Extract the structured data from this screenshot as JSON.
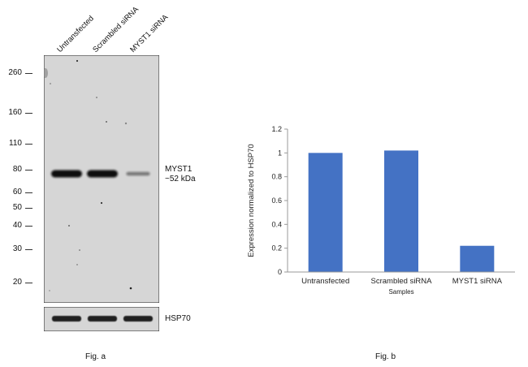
{
  "fig_a": {
    "caption": "Fig. a",
    "lanes": [
      "Untransfected",
      "Scrambled siRNA",
      "MYST1 siRNA"
    ],
    "mw_markers": [
      {
        "label": "260",
        "value": 260
      },
      {
        "label": "160",
        "value": 160
      },
      {
        "label": "110",
        "value": 110
      },
      {
        "label": "80",
        "value": 80
      },
      {
        "label": "60",
        "value": 60
      },
      {
        "label": "50",
        "value": 50
      },
      {
        "label": "40",
        "value": 40
      },
      {
        "label": "30",
        "value": 30
      },
      {
        "label": "20",
        "value": 20
      }
    ],
    "target_label_line1": "MYST1",
    "target_label_line2": "~52 kDa",
    "control_label": "HSP70",
    "band_intensity": [
      1.0,
      1.02,
      0.22
    ],
    "control_intensity": [
      1.0,
      1.0,
      1.0
    ]
  },
  "fig_b": {
    "caption": "Fig. b"
  },
  "chart_data": {
    "type": "bar",
    "categories": [
      "Untransfected",
      "Scrambled siRNA",
      "MYST1 siRNA"
    ],
    "values": [
      1.0,
      1.02,
      0.22
    ],
    "title": "",
    "xlabel": "Samples",
    "ylabel": "Expression  normalized to HSP70",
    "ylim": [
      0,
      1.2
    ],
    "yticks": [
      0,
      0.2,
      0.4,
      0.6,
      0.8,
      1,
      1.2
    ],
    "ytick_labels": [
      "0",
      "0.2",
      "0.4",
      "0.6",
      "0.8",
      "1",
      "1.2"
    ],
    "grid": false,
    "bar_color": "#4472c4"
  }
}
